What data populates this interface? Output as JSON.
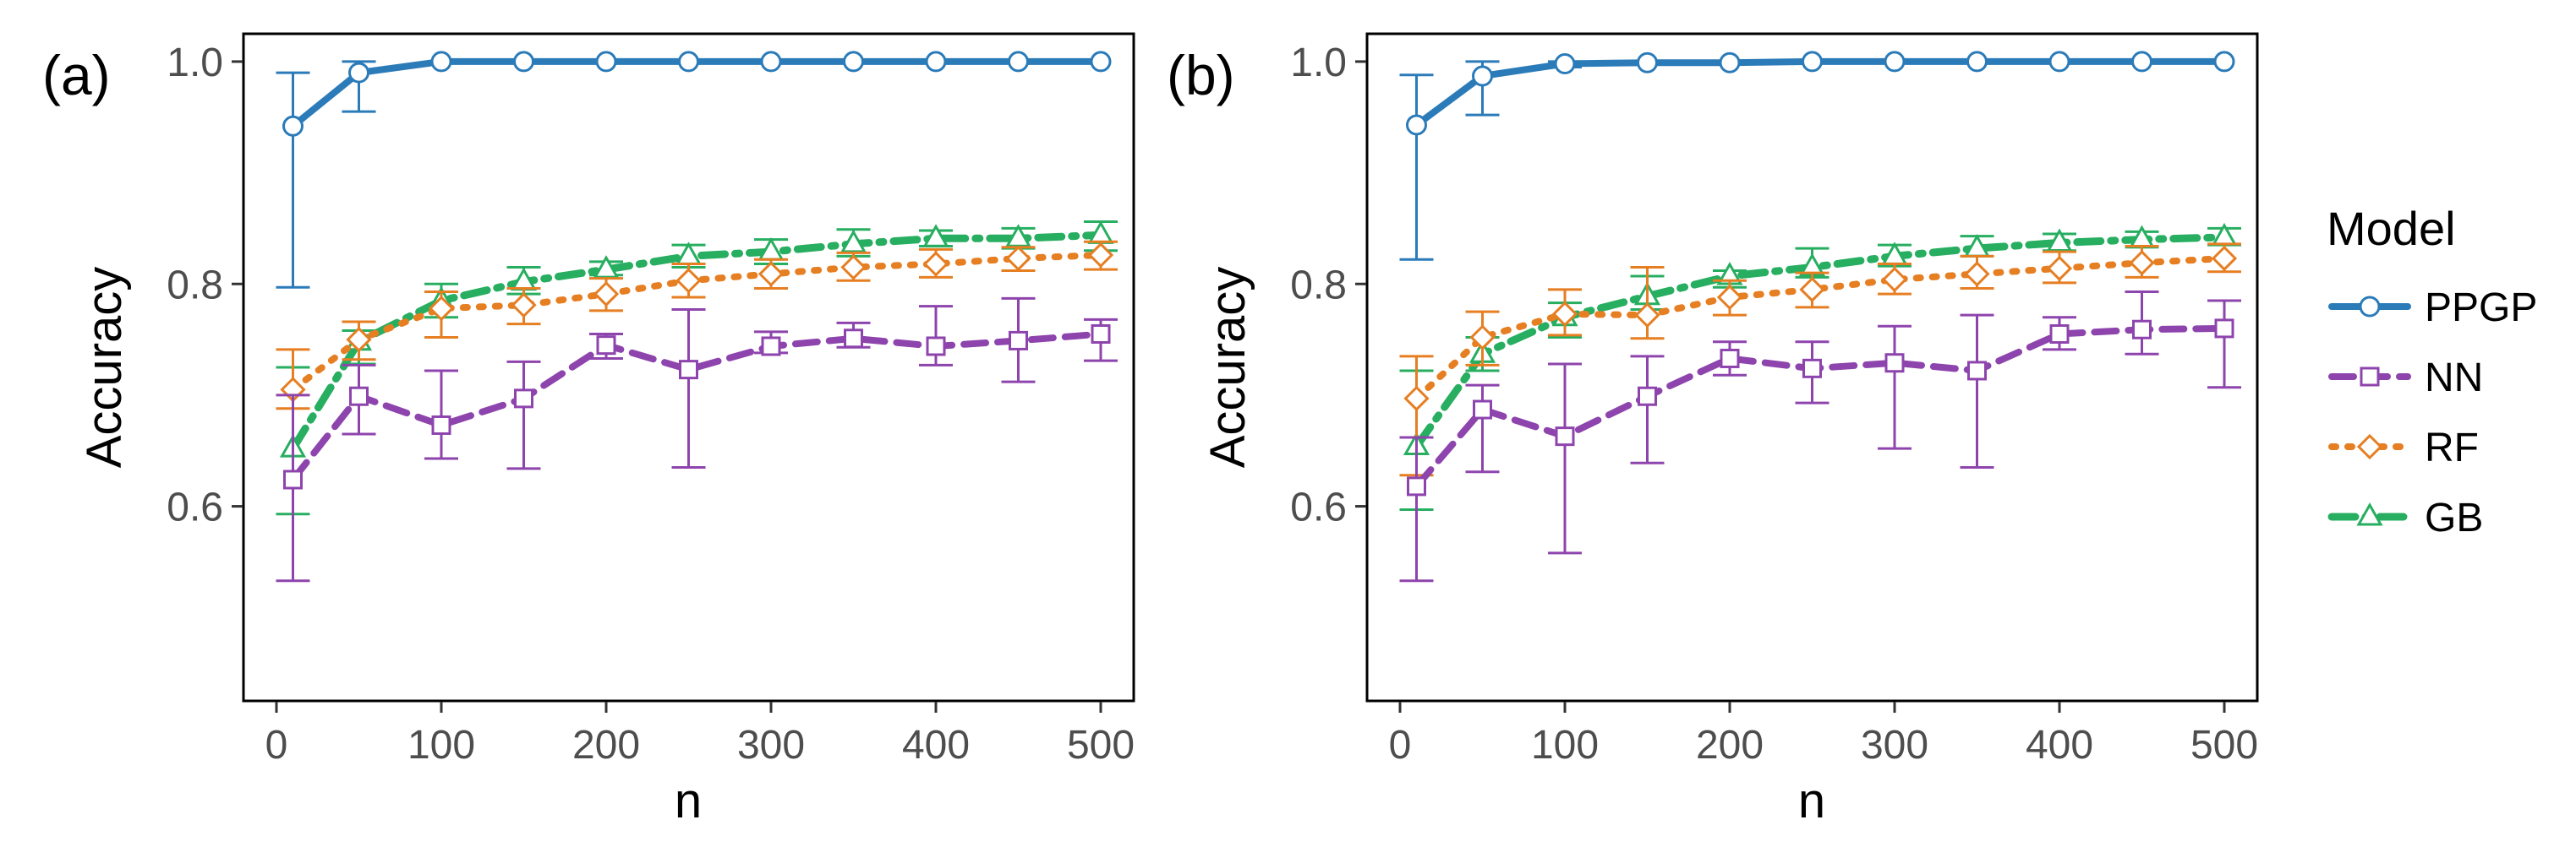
{
  "chart_data": [
    {
      "type": "line",
      "panel_label": "(a)",
      "xlabel": "n",
      "ylabel": "Accuracy",
      "xlim": [
        -20,
        520
      ],
      "ylim": [
        0.425,
        1.025
      ],
      "x_ticks": [
        0,
        100,
        200,
        300,
        400,
        500
      ],
      "y_ticks": [
        0.6,
        0.8,
        1.0
      ],
      "x_tick_labels": [
        "0",
        "100",
        "200",
        "300",
        "400",
        "500"
      ],
      "y_tick_labels": [
        "0.6",
        "0.8",
        "1.0"
      ],
      "grid": false,
      "x": [
        10,
        50,
        100,
        150,
        200,
        250,
        300,
        350,
        400,
        450,
        500
      ],
      "series": [
        {
          "name": "PPGP",
          "values": [
            0.942,
            0.99,
            1.0,
            1.0,
            1.0,
            1.0,
            1.0,
            1.0,
            1.0,
            1.0,
            1.0
          ],
          "lower": [
            0.797,
            0.955,
            1.0,
            1.0,
            1.0,
            1.0,
            1.0,
            1.0,
            1.0,
            1.0,
            1.0
          ],
          "upper": [
            0.99,
            1.0,
            1.0,
            1.0,
            1.0,
            1.0,
            1.0,
            1.0,
            1.0,
            1.0,
            1.0
          ]
        },
        {
          "name": "NN",
          "values": [
            0.624,
            0.699,
            0.673,
            0.697,
            0.745,
            0.723,
            0.744,
            0.751,
            0.744,
            0.749,
            0.755
          ],
          "lower": [
            0.533,
            0.665,
            0.643,
            0.634,
            0.733,
            0.635,
            0.738,
            0.743,
            0.727,
            0.712,
            0.731
          ],
          "upper": [
            0.7,
            0.727,
            0.722,
            0.73,
            0.755,
            0.777,
            0.757,
            0.765,
            0.78,
            0.787,
            0.768
          ]
        },
        {
          "name": "RF",
          "values": [
            0.705,
            0.75,
            0.778,
            0.781,
            0.791,
            0.803,
            0.809,
            0.815,
            0.818,
            0.823,
            0.826
          ],
          "lower": [
            0.688,
            0.732,
            0.752,
            0.764,
            0.776,
            0.788,
            0.796,
            0.803,
            0.806,
            0.812,
            0.813
          ],
          "upper": [
            0.741,
            0.766,
            0.793,
            0.796,
            0.805,
            0.818,
            0.822,
            0.828,
            0.831,
            0.833,
            0.838
          ]
        },
        {
          "name": "GB",
          "values": [
            0.652,
            0.748,
            0.785,
            0.802,
            0.813,
            0.825,
            0.829,
            0.836,
            0.841,
            0.841,
            0.844
          ],
          "lower": [
            0.593,
            0.728,
            0.77,
            0.791,
            0.808,
            0.815,
            0.818,
            0.825,
            0.834,
            0.832,
            0.83
          ],
          "upper": [
            0.725,
            0.758,
            0.8,
            0.815,
            0.82,
            0.835,
            0.84,
            0.849,
            0.848,
            0.85,
            0.856
          ]
        }
      ]
    },
    {
      "type": "line",
      "panel_label": "(b)",
      "xlabel": "n",
      "ylabel": "Accuracy",
      "xlim": [
        -20,
        520
      ],
      "ylim": [
        0.425,
        1.025
      ],
      "x_ticks": [
        0,
        100,
        200,
        300,
        400,
        500
      ],
      "y_ticks": [
        0.6,
        0.8,
        1.0
      ],
      "x_tick_labels": [
        "0",
        "100",
        "200",
        "300",
        "400",
        "500"
      ],
      "y_tick_labels": [
        "0.6",
        "0.8",
        "1.0"
      ],
      "grid": false,
      "x": [
        10,
        50,
        100,
        150,
        200,
        250,
        300,
        350,
        400,
        450,
        500
      ],
      "series": [
        {
          "name": "PPGP",
          "values": [
            0.943,
            0.987,
            0.998,
            0.999,
            0.999,
            1.0,
            1.0,
            1.0,
            1.0,
            1.0,
            1.0
          ],
          "lower": [
            0.822,
            0.952,
            0.995,
            0.999,
            0.999,
            1.0,
            1.0,
            1.0,
            1.0,
            1.0,
            1.0
          ],
          "upper": [
            0.988,
            1.0,
            1.0,
            1.0,
            1.0,
            1.0,
            1.0,
            1.0,
            1.0,
            1.0,
            1.0
          ]
        },
        {
          "name": "NN",
          "values": [
            0.618,
            0.687,
            0.663,
            0.699,
            0.733,
            0.724,
            0.729,
            0.722,
            0.755,
            0.759,
            0.76
          ],
          "lower": [
            0.533,
            0.631,
            0.558,
            0.639,
            0.718,
            0.693,
            0.652,
            0.635,
            0.741,
            0.737,
            0.707
          ],
          "upper": [
            0.662,
            0.709,
            0.728,
            0.735,
            0.748,
            0.748,
            0.762,
            0.772,
            0.77,
            0.793,
            0.785
          ]
        },
        {
          "name": "RF",
          "values": [
            0.697,
            0.752,
            0.773,
            0.772,
            0.788,
            0.795,
            0.804,
            0.809,
            0.814,
            0.819,
            0.823
          ],
          "lower": [
            0.628,
            0.727,
            0.754,
            0.751,
            0.772,
            0.779,
            0.791,
            0.796,
            0.801,
            0.806,
            0.811
          ],
          "upper": [
            0.735,
            0.775,
            0.795,
            0.815,
            0.803,
            0.81,
            0.818,
            0.825,
            0.829,
            0.834,
            0.836
          ]
        },
        {
          "name": "GB",
          "values": [
            0.654,
            0.737,
            0.77,
            0.789,
            0.807,
            0.815,
            0.825,
            0.832,
            0.837,
            0.84,
            0.842
          ],
          "lower": [
            0.597,
            0.722,
            0.752,
            0.777,
            0.797,
            0.806,
            0.816,
            0.825,
            0.83,
            0.833,
            0.835
          ],
          "upper": [
            0.722,
            0.752,
            0.783,
            0.807,
            0.812,
            0.832,
            0.835,
            0.843,
            0.845,
            0.847,
            0.85
          ]
        }
      ]
    }
  ],
  "legend": {
    "title": "Model",
    "entries": [
      {
        "name": "PPGP",
        "color": "#2b7bb9",
        "marker": "circle",
        "line": "solid"
      },
      {
        "name": "NN",
        "color": "#8e44ad",
        "marker": "square",
        "line": "dashed"
      },
      {
        "name": "RF",
        "color": "#e67e22",
        "marker": "diamond",
        "line": "dotted"
      },
      {
        "name": "GB",
        "color": "#27ae60",
        "marker": "triangle",
        "line": "dotdash"
      }
    ]
  }
}
